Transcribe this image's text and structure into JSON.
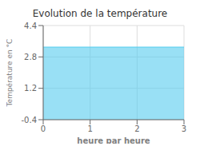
{
  "chart_data": {
    "type": "area",
    "title": "Evolution de la température",
    "xlabel": "heure par heure",
    "ylabel": "Température en °C",
    "x": [
      0,
      3
    ],
    "values": [
      3.3,
      3.3
    ],
    "color": "#55ccee",
    "xlim": [
      0,
      3
    ],
    "ylim": [
      -0.4,
      4.4
    ],
    "xticks": [
      0,
      1,
      2,
      3
    ],
    "yticks": [
      -0.4,
      1.2,
      2.8,
      4.4
    ],
    "grid": true
  }
}
